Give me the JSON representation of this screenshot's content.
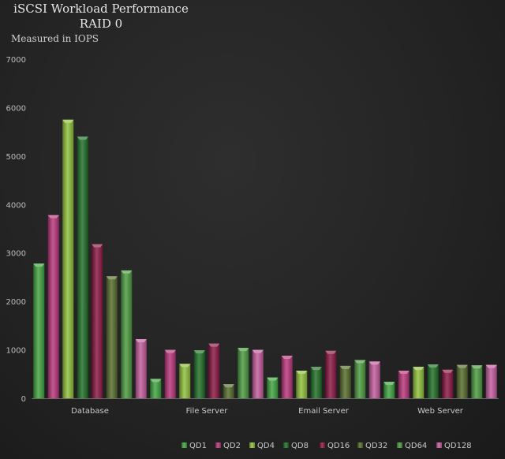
{
  "chart_data": {
    "type": "bar",
    "title": "iSCSI Workload Performance",
    "subtitle": "RAID 0",
    "ylabel": "Measured in IOPS",
    "xlabel": "",
    "ylim": [
      0,
      7000
    ],
    "yticks": [
      0,
      1000,
      2000,
      3000,
      4000,
      5000,
      6000,
      7000
    ],
    "grid": false,
    "legend": "bottom-right",
    "categories": [
      "Database",
      "File Server",
      "Email Server",
      "Web Server"
    ],
    "series": [
      {
        "name": "QD1",
        "color": "#3fa33f",
        "values": [
          2780,
          400,
          430,
          340
        ]
      },
      {
        "name": "QD2",
        "color": "#b8347a",
        "values": [
          3780,
          1000,
          880,
          570
        ]
      },
      {
        "name": "QD4",
        "color": "#8fbf3a",
        "values": [
          5750,
          710,
          570,
          650
        ]
      },
      {
        "name": "QD8",
        "color": "#1f6e26",
        "values": [
          5400,
          990,
          650,
          700
        ]
      },
      {
        "name": "QD16",
        "color": "#8a1642",
        "values": [
          3180,
          1130,
          980,
          590
        ]
      },
      {
        "name": "QD32",
        "color": "#556b2a",
        "values": [
          2520,
          290,
          670,
          690
        ]
      },
      {
        "name": "QD64",
        "color": "#4a9a3e",
        "values": [
          2640,
          1040,
          790,
          680
        ]
      },
      {
        "name": "QD128",
        "color": "#c25a9c",
        "values": [
          1220,
          1000,
          760,
          690
        ]
      }
    ]
  }
}
